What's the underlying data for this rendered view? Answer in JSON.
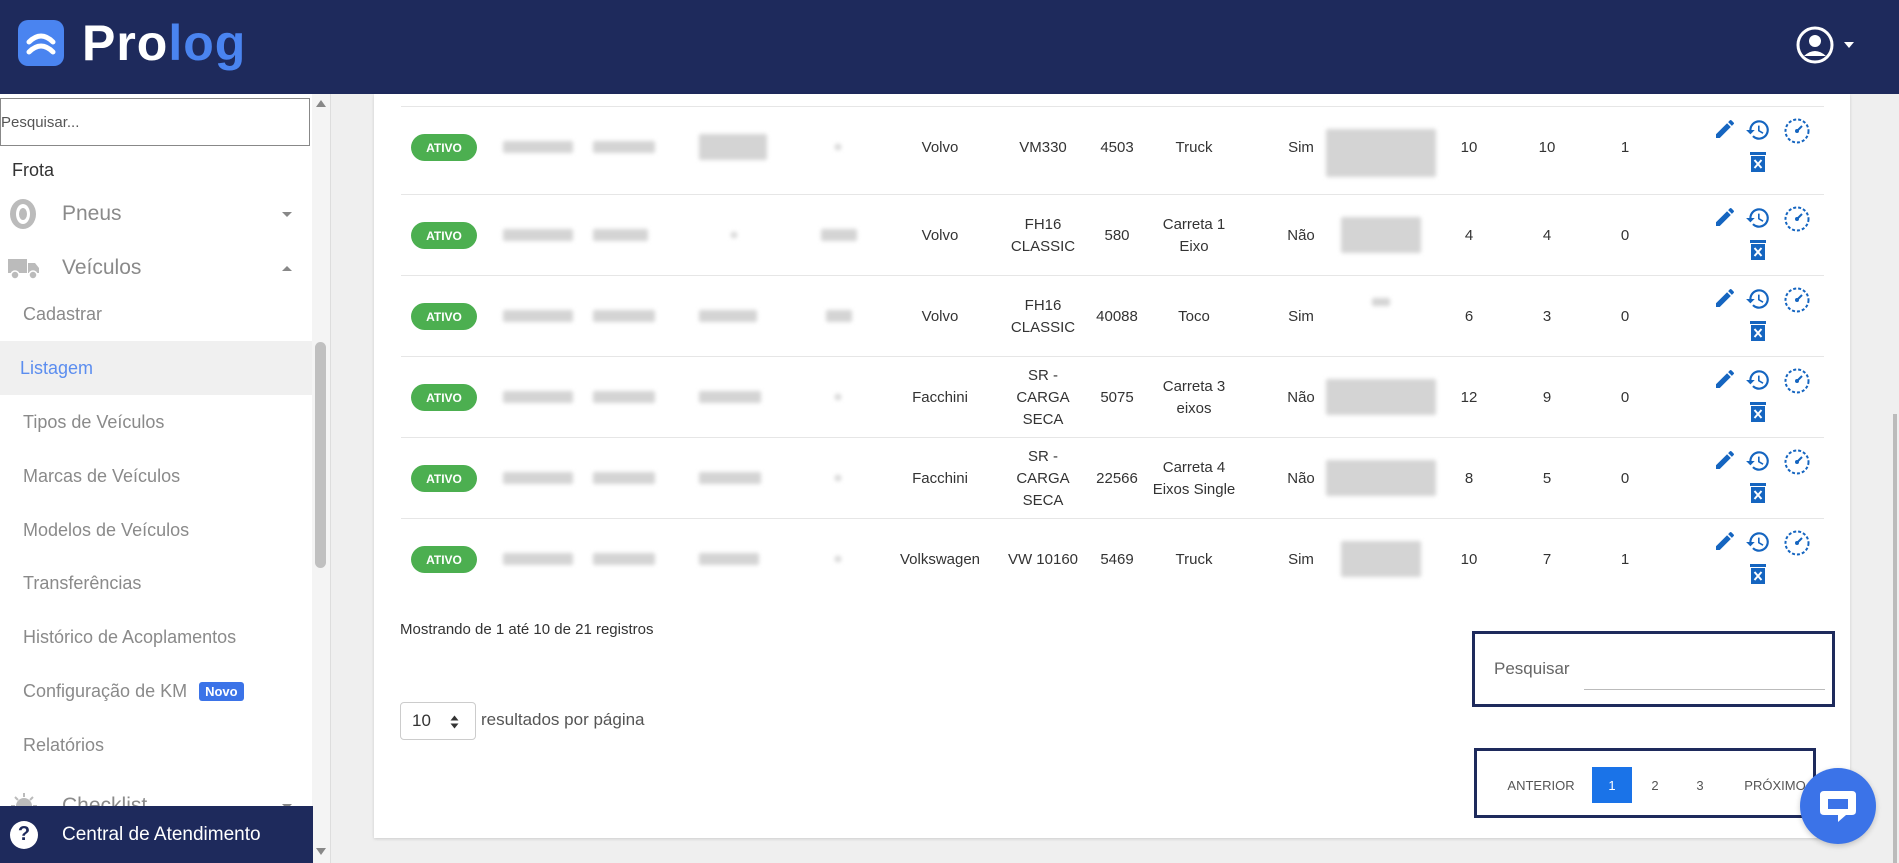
{
  "app": {
    "brand_pro": "Pro",
    "brand_log": "log"
  },
  "sidebar": {
    "search_placeholder": "Pesquisar...",
    "section": "Frota",
    "pneus": "Pneus",
    "veiculos": "Veículos",
    "items": [
      {
        "label": "Cadastrar"
      },
      {
        "label": "Listagem"
      },
      {
        "label": "Tipos de Veículos"
      },
      {
        "label": "Marcas de Veículos"
      },
      {
        "label": "Modelos de Veículos"
      },
      {
        "label": "Transferências"
      },
      {
        "label": "Histórico de Acoplamentos"
      },
      {
        "label": "Configuração de KM"
      },
      {
        "label": "Relatórios"
      }
    ],
    "novo_badge": "Novo",
    "checklist": "Checklist",
    "central": "Central de Atendimento"
  },
  "table": {
    "status_label": "ATIVO",
    "rows": [
      {
        "marca": "Volvo",
        "modelo": "VM330",
        "km": "4503",
        "tipo": "Truck",
        "motorizado": "Sim",
        "c1": "10",
        "c2": "10",
        "c3": "1"
      },
      {
        "marca": "Volvo",
        "modelo": "FH16 CLASSIC",
        "km": "580",
        "tipo": "Carreta 1 Eixo",
        "motorizado": "Não",
        "c1": "4",
        "c2": "4",
        "c3": "0"
      },
      {
        "marca": "Volvo",
        "modelo": "FH16 CLASSIC",
        "km": "40088",
        "tipo": "Toco",
        "motorizado": "Sim",
        "c1": "6",
        "c2": "3",
        "c3": "0"
      },
      {
        "marca": "Facchini",
        "modelo": "SR - CARGA SECA",
        "km": "5075",
        "tipo": "Carreta 3 eixos",
        "motorizado": "Não",
        "c1": "12",
        "c2": "9",
        "c3": "0"
      },
      {
        "marca": "Facchini",
        "modelo": "SR - CARGA SECA",
        "km": "22566",
        "tipo": "Carreta 4 Eixos Single",
        "motorizado": "Não",
        "c1": "8",
        "c2": "5",
        "c3": "0"
      },
      {
        "marca": "Volkswagen",
        "modelo": "VW 10160",
        "km": "5469",
        "tipo": "Truck",
        "motorizado": "Sim",
        "c1": "10",
        "c2": "7",
        "c3": "1"
      }
    ]
  },
  "footer": {
    "info": "Mostrando de 1 até 10 de 21 registros",
    "per_page_value": "10",
    "per_page_label": "resultados por página",
    "search_label": "Pesquisar",
    "pager": {
      "prev": "ANTERIOR",
      "p1": "1",
      "p2": "2",
      "p3": "3",
      "next": "PRÓXIMO"
    }
  },
  "colors": {
    "header": "#1e2a5c",
    "accent": "#4a84f0",
    "status_green": "#4caf50",
    "icon_blue": "#1565c0"
  }
}
